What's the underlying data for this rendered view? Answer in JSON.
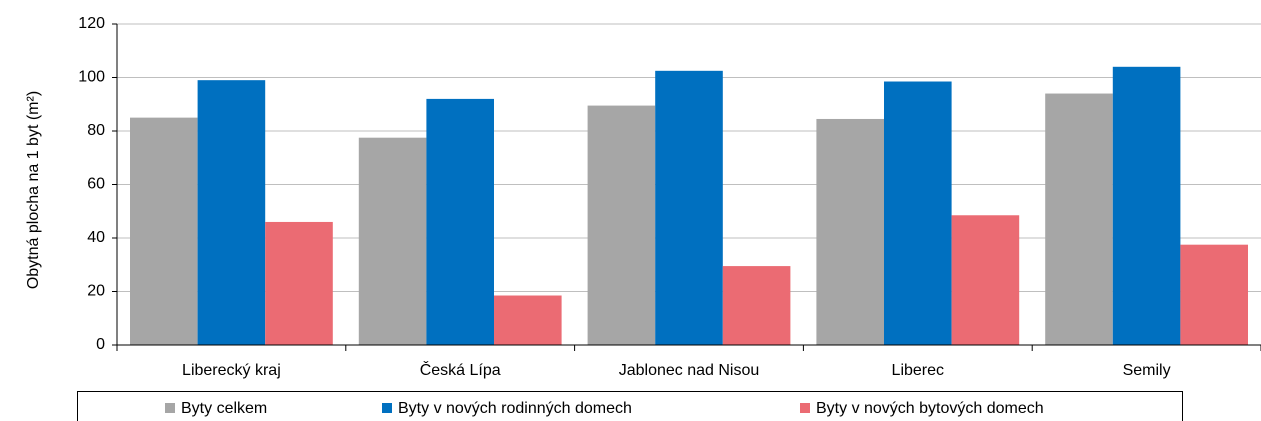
{
  "chart_data": {
    "type": "bar",
    "y_label": "Obytná plocha na 1 byt (m²)",
    "categories": [
      "Liberecký kraj",
      "Česká Lípa",
      "Jablonec nad Nisou",
      "Liberec",
      "Semily"
    ],
    "series": [
      {
        "name": "Byty celkem",
        "color": "#a6a6a6",
        "values": [
          85,
          77.5,
          89.5,
          84.5,
          94
        ]
      },
      {
        "name": "Byty v nových rodinných domech",
        "color": "#0070c0",
        "values": [
          99,
          92,
          102.5,
          98.5,
          104
        ]
      },
      {
        "name": "Byty v nových bytových domech",
        "color": "#eb6b73",
        "values": [
          46,
          18.5,
          29.5,
          48.5,
          37.5
        ]
      }
    ],
    "ylim": [
      0,
      120
    ],
    "yticks": [
      0,
      20,
      40,
      60,
      80,
      100,
      120
    ],
    "grid": true
  }
}
